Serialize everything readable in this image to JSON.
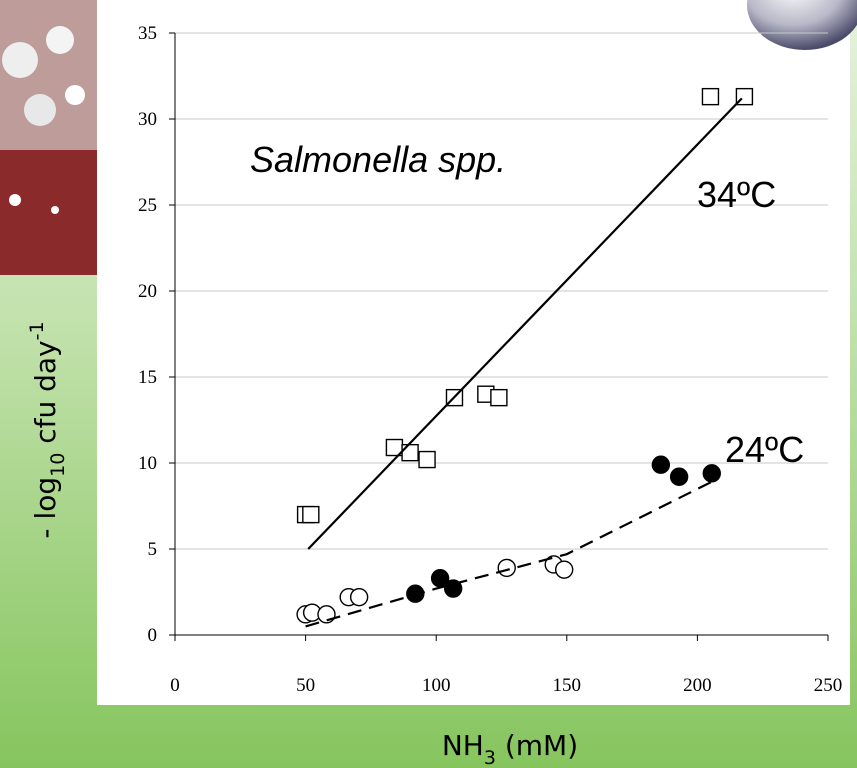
{
  "chart_data": {
    "type": "scatter",
    "xlabel_parts": [
      "NH",
      "3",
      " (mM)"
    ],
    "ylabel_parts": [
      "- log",
      "10",
      " cfu day",
      "-1"
    ],
    "annotations": [
      "Salmonella spp.",
      "34ºC",
      "24ºC"
    ],
    "xlim": [
      0,
      250
    ],
    "xticks": [
      0,
      50,
      100,
      150,
      200,
      250
    ],
    "ylim": [
      0,
      35
    ],
    "yticks": [
      0,
      5,
      10,
      15,
      20,
      25,
      30,
      35
    ],
    "grid": true,
    "series": [
      {
        "mode": "markers",
        "marker": "square",
        "filled": false,
        "color": "#000000",
        "x": [
          50,
          52,
          84,
          90,
          96.5,
          107,
          119,
          124,
          205,
          218
        ],
        "values": [
          7.0,
          7.0,
          10.9,
          10.6,
          10.2,
          13.8,
          14.0,
          13.8,
          31.3,
          31.3
        ]
      },
      {
        "mode": "markers",
        "marker": "circle",
        "filled": false,
        "color": "#000000",
        "x": [
          50,
          52.5,
          58,
          66.5,
          70.5,
          127,
          145,
          149
        ],
        "values": [
          1.2,
          1.3,
          1.2,
          2.2,
          2.2,
          3.9,
          4.1,
          3.8
        ]
      },
      {
        "mode": "markers",
        "marker": "circle",
        "filled": true,
        "color": "#000000",
        "x": [
          92,
          101.5,
          106.5,
          186,
          193,
          205.5
        ],
        "values": [
          2.4,
          3.3,
          2.7,
          9.9,
          9.2,
          9.4
        ]
      },
      {
        "mode": "line",
        "dash": false,
        "color": "#000000",
        "x": [
          51,
          217
        ],
        "values": [
          5.0,
          31.2
        ]
      },
      {
        "mode": "line",
        "dash": true,
        "color": "#000000",
        "x": [
          50,
          100,
          150,
          208
        ],
        "values": [
          0.5,
          2.7,
          4.7,
          9.1
        ]
      }
    ]
  }
}
